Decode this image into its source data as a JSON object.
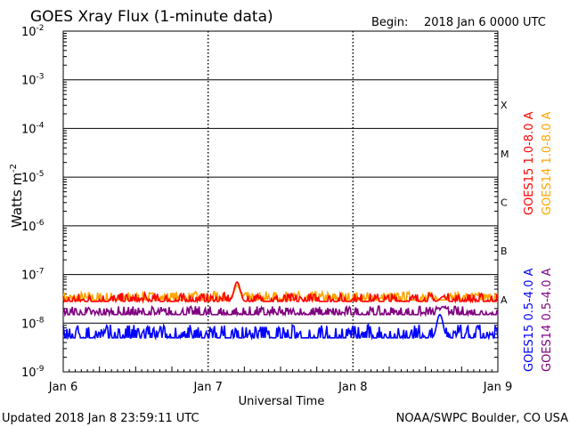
{
  "chart_data": {
    "type": "line",
    "title": "GOES Xray Flux (1-minute data)",
    "begin_label": "Begin:",
    "begin_value": "2018 Jan 6 0000 UTC",
    "xlabel": "Universal Time",
    "ylabel": "Watts m",
    "ylabel_superscript": "-2",
    "x_ticks": [
      "Jan 6",
      "Jan 7",
      "Jan 8",
      "Jan 9"
    ],
    "xlim_days": [
      0,
      3
    ],
    "y_scale": "log",
    "ylim": [
      1e-09,
      0.01
    ],
    "y_ticks": [
      {
        "base": "10",
        "exp": "-9"
      },
      {
        "base": "10",
        "exp": "-8"
      },
      {
        "base": "10",
        "exp": "-7"
      },
      {
        "base": "10",
        "exp": "-6"
      },
      {
        "base": "10",
        "exp": "-5"
      },
      {
        "base": "10",
        "exp": "-4"
      },
      {
        "base": "10",
        "exp": "-3"
      },
      {
        "base": "10",
        "exp": "-2"
      }
    ],
    "flare_classes": [
      "X",
      "M",
      "C",
      "B",
      "A"
    ],
    "grid": true,
    "legend_position": "right, rotated",
    "series": [
      {
        "name": "GOES15 1.0-8.0 A",
        "color": "#ff0000",
        "typical_value": 2.8e-08,
        "spikes": [
          {
            "day": 1.2,
            "value": 7e-08
          },
          {
            "day": 2.62,
            "value": 3.5e-08
          }
        ]
      },
      {
        "name": "GOES14 1.0-8.0 A",
        "color": "#ffa500",
        "typical_value": 3e-08,
        "spikes": [
          {
            "day": 1.2,
            "value": 6e-08
          }
        ]
      },
      {
        "name": "GOES15 0.5-4.0 A",
        "color": "#0000ff",
        "typical_value": 5e-09,
        "spikes": [
          {
            "day": 2.6,
            "value": 1.5e-08
          }
        ]
      },
      {
        "name": "GOES14 0.5-4.0 A",
        "color": "#800080",
        "typical_value": 1.5e-08,
        "spikes": [
          {
            "day": 2.62,
            "value": 2.2e-08
          }
        ]
      }
    ]
  },
  "footer": {
    "updated": "Updated 2018 Jan  8 23:59:11 UTC",
    "source": "NOAA/SWPC Boulder, CO USA"
  }
}
